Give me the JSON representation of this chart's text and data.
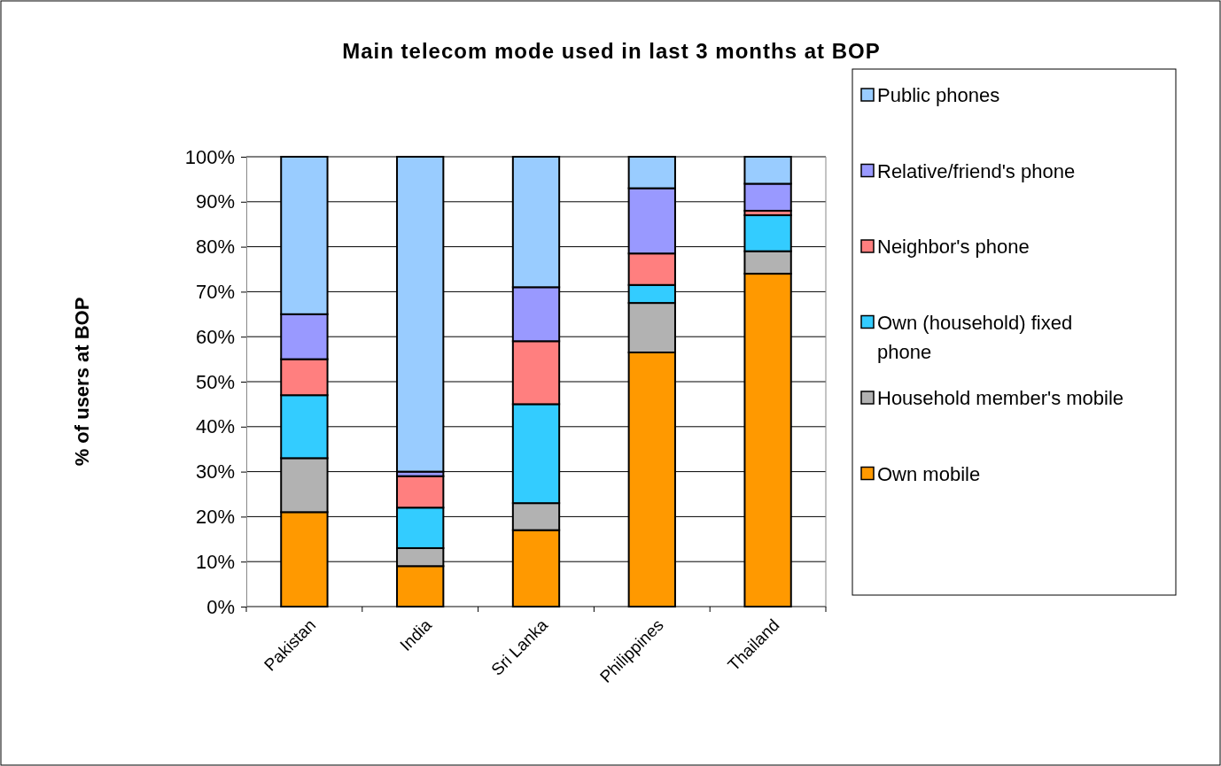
{
  "chart_data": {
    "type": "bar",
    "title": "Main telecom mode used in last 3 months at BOP",
    "ylabel": "% of users at BOP",
    "categories": [
      "Pakistan",
      "India",
      "Sri Lanka",
      "Philippines",
      "Thailand"
    ],
    "stacked": true,
    "grid": "y",
    "legend": "right",
    "ylim": [
      0,
      100
    ],
    "yticks": [
      {
        "value": 0,
        "label": "0%"
      },
      {
        "value": 10,
        "label": "10%"
      },
      {
        "value": 20,
        "label": "20%"
      },
      {
        "value": 30,
        "label": "30%"
      },
      {
        "value": 40,
        "label": "40%"
      },
      {
        "value": 50,
        "label": "50%"
      },
      {
        "value": 60,
        "label": "60%"
      },
      {
        "value": 70,
        "label": "70%"
      },
      {
        "value": 80,
        "label": "80%"
      },
      {
        "value": 90,
        "label": "90%"
      },
      {
        "value": 100,
        "label": "100%"
      }
    ],
    "series": [
      {
        "name": "Own mobile",
        "color": "#ff9900",
        "values": [
          21,
          9,
          17,
          56.5,
          74
        ]
      },
      {
        "name": "Household member's mobile",
        "color": "#b2b2b2",
        "values": [
          12,
          4,
          6,
          11,
          5
        ]
      },
      {
        "name": "Own (household) fixed phone",
        "color": "#33ccff",
        "values": [
          14,
          9,
          22,
          4,
          8
        ]
      },
      {
        "name": "Neighbor's phone",
        "color": "#ff7f7f",
        "values": [
          8,
          7,
          14,
          7,
          1
        ]
      },
      {
        "name": "Relative/friend's phone",
        "color": "#9999ff",
        "values": [
          10,
          1,
          12,
          14.5,
          6
        ]
      },
      {
        "name": "Public phones",
        "color": "#99ccff",
        "values": [
          35,
          70,
          29,
          7,
          6
        ]
      }
    ]
  }
}
